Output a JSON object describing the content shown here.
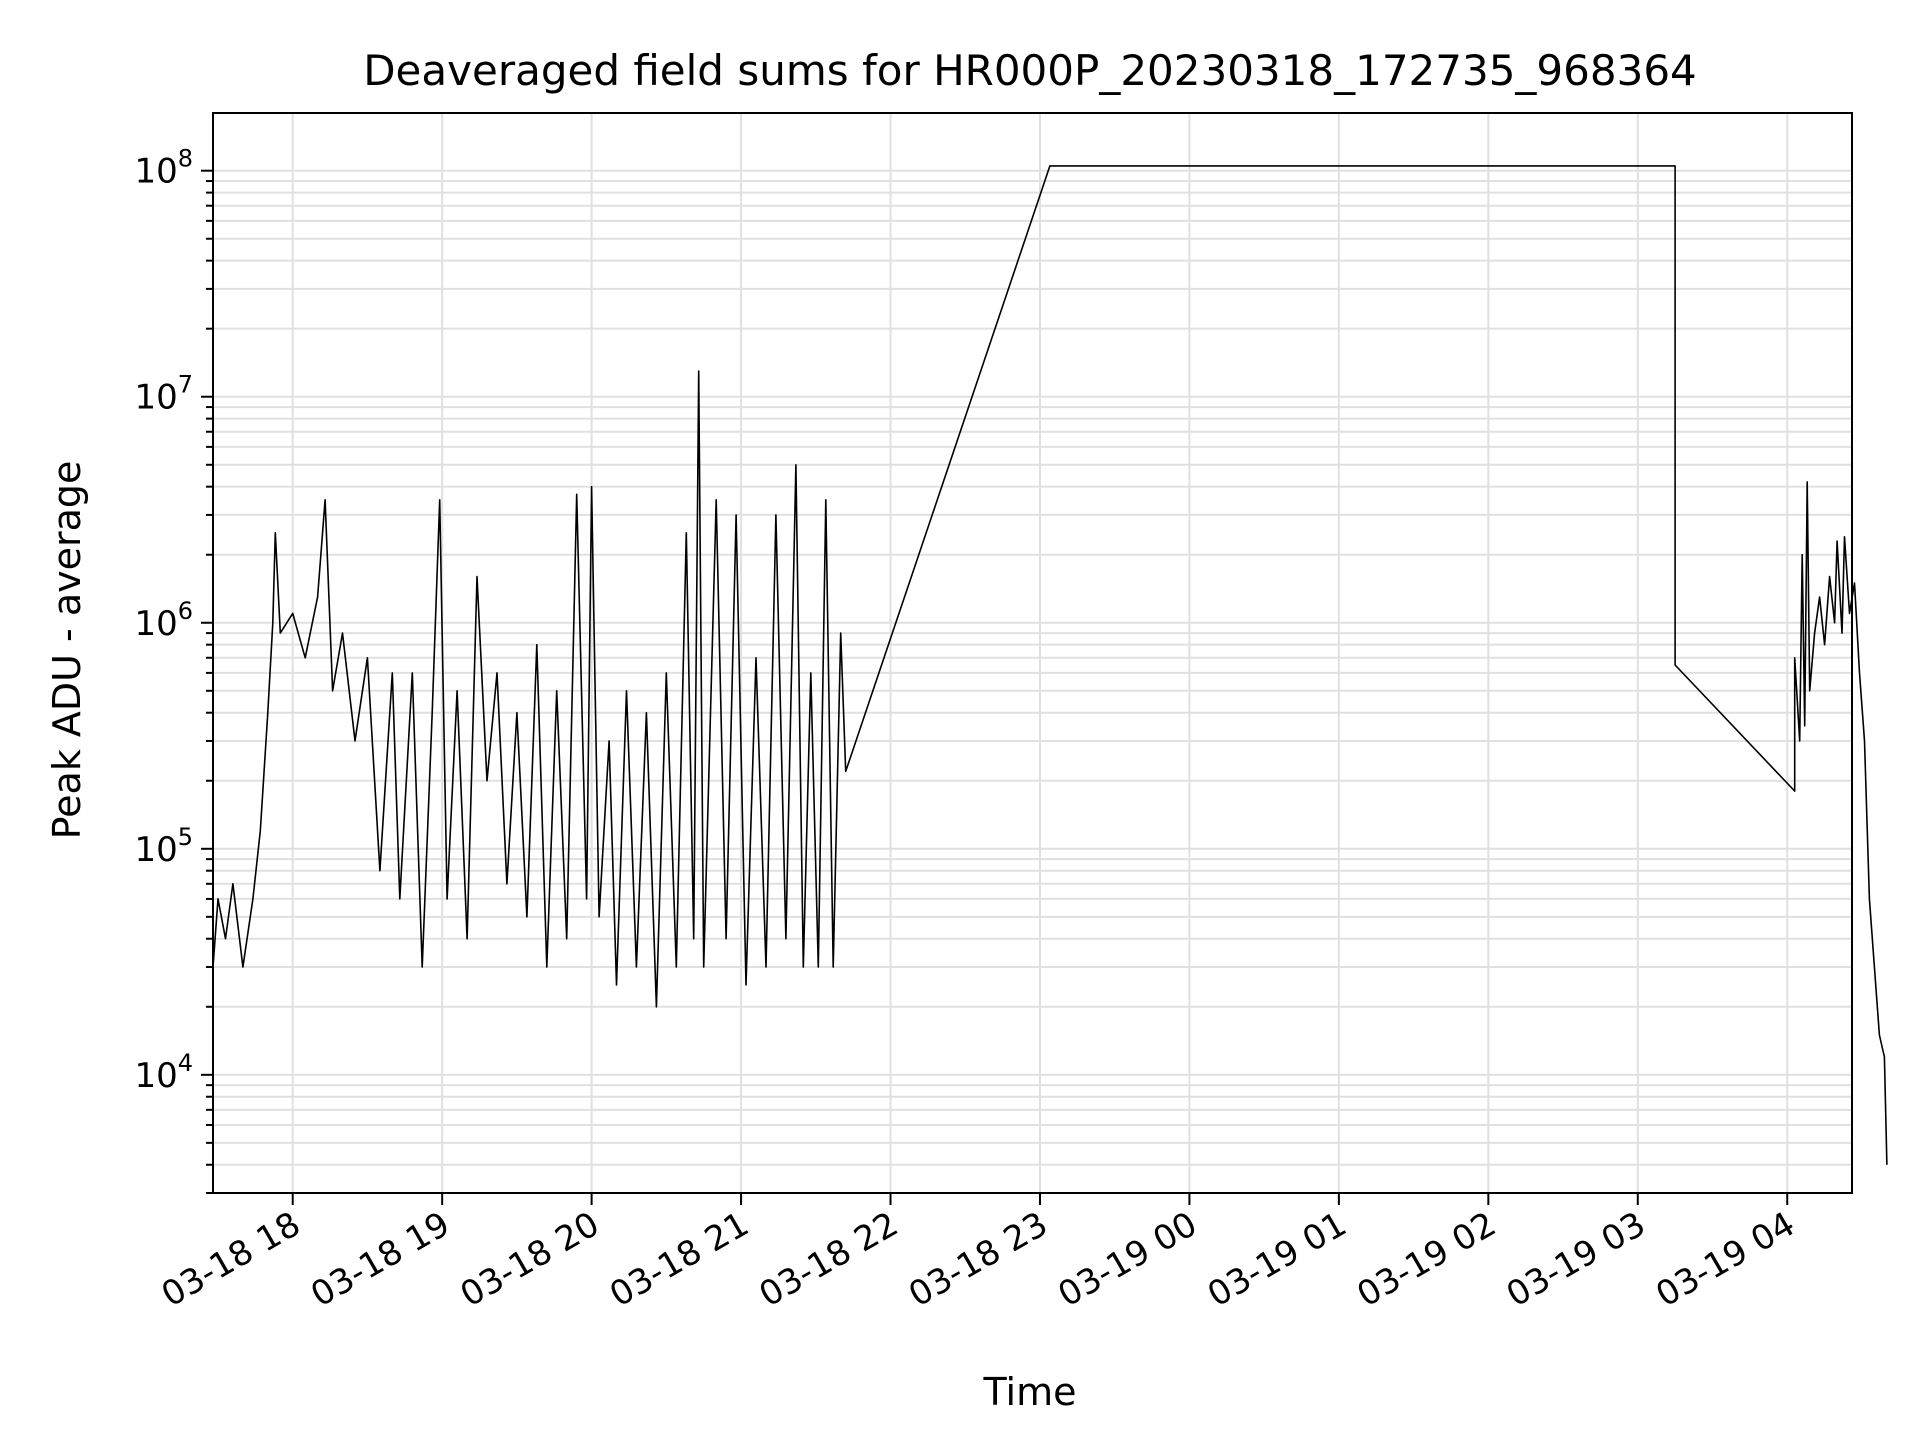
{
  "chart_data": {
    "type": "line",
    "title": "Deaveraged field sums for HR000P_20230318_172735_968364",
    "xlabel": "Time",
    "ylabel": "Peak ADU - average",
    "yscale": "log",
    "ylim": [
      3000,
      180000000
    ],
    "xlim": [
      "2023-03-18 17:28",
      "2023-03-19 04:26"
    ],
    "grid": true,
    "line_color": "#000000",
    "grid_color": "#e0e0e0",
    "x_ticks": [
      "03-18 18",
      "03-18 19",
      "03-18 20",
      "03-18 21",
      "03-18 22",
      "03-18 23",
      "03-19 00",
      "03-19 01",
      "03-19 02",
      "03-19 03",
      "03-19 04"
    ],
    "y_ticks": [
      {
        "value": 10000,
        "base": "10",
        "exponent": "4"
      },
      {
        "value": 100000,
        "base": "10",
        "exponent": "5"
      },
      {
        "value": 1000000,
        "base": "10",
        "exponent": "6"
      },
      {
        "value": 10000000,
        "base": "10",
        "exponent": "7"
      },
      {
        "value": 100000000,
        "base": "10",
        "exponent": "8"
      }
    ],
    "series": [
      {
        "points": [
          [
            "2023-03-18 17:28",
            30000
          ],
          [
            "2023-03-18 17:30",
            60000
          ],
          [
            "2023-03-18 17:33",
            40000
          ],
          [
            "2023-03-18 17:36",
            70000
          ],
          [
            "2023-03-18 17:40",
            30000
          ],
          [
            "2023-03-18 17:44",
            60000
          ],
          [
            "2023-03-18 17:47",
            120000
          ],
          [
            "2023-03-18 17:50",
            400000
          ],
          [
            "2023-03-18 17:52",
            1000000
          ],
          [
            "2023-03-18 17:53",
            2500000
          ],
          [
            "2023-03-18 17:55",
            900000
          ],
          [
            "2023-03-18 18:00",
            1100000
          ],
          [
            "2023-03-18 18:05",
            700000
          ],
          [
            "2023-03-18 18:10",
            1300000
          ],
          [
            "2023-03-18 18:13",
            3500000
          ],
          [
            "2023-03-18 18:16",
            500000
          ],
          [
            "2023-03-18 18:20",
            900000
          ],
          [
            "2023-03-18 18:25",
            300000
          ],
          [
            "2023-03-18 18:30",
            700000
          ],
          [
            "2023-03-18 18:35",
            80000
          ],
          [
            "2023-03-18 18:40",
            600000
          ],
          [
            "2023-03-18 18:43",
            60000
          ],
          [
            "2023-03-18 18:48",
            600000
          ],
          [
            "2023-03-18 18:52",
            30000
          ],
          [
            "2023-03-18 18:56",
            400000
          ],
          [
            "2023-03-18 18:59",
            3500000
          ],
          [
            "2023-03-18 19:02",
            60000
          ],
          [
            "2023-03-18 19:06",
            500000
          ],
          [
            "2023-03-18 19:10",
            40000
          ],
          [
            "2023-03-18 19:14",
            1600000
          ],
          [
            "2023-03-18 19:18",
            200000
          ],
          [
            "2023-03-18 19:22",
            600000
          ],
          [
            "2023-03-18 19:26",
            70000
          ],
          [
            "2023-03-18 19:30",
            400000
          ],
          [
            "2023-03-18 19:34",
            50000
          ],
          [
            "2023-03-18 19:38",
            800000
          ],
          [
            "2023-03-18 19:42",
            30000
          ],
          [
            "2023-03-18 19:46",
            500000
          ],
          [
            "2023-03-18 19:50",
            40000
          ],
          [
            "2023-03-18 19:54",
            3700000
          ],
          [
            "2023-03-18 19:58",
            60000
          ],
          [
            "2023-03-18 20:00",
            4000000
          ],
          [
            "2023-03-18 20:03",
            50000
          ],
          [
            "2023-03-18 20:07",
            300000
          ],
          [
            "2023-03-18 20:10",
            25000
          ],
          [
            "2023-03-18 20:14",
            500000
          ],
          [
            "2023-03-18 20:18",
            30000
          ],
          [
            "2023-03-18 20:22",
            400000
          ],
          [
            "2023-03-18 20:26",
            20000
          ],
          [
            "2023-03-18 20:30",
            600000
          ],
          [
            "2023-03-18 20:34",
            30000
          ],
          [
            "2023-03-18 20:38",
            2500000
          ],
          [
            "2023-03-18 20:41",
            40000
          ],
          [
            "2023-03-18 20:43",
            13000000
          ],
          [
            "2023-03-18 20:45",
            30000
          ],
          [
            "2023-03-18 20:50",
            3500000
          ],
          [
            "2023-03-18 20:54",
            40000
          ],
          [
            "2023-03-18 20:58",
            3000000
          ],
          [
            "2023-03-18 21:02",
            25000
          ],
          [
            "2023-03-18 21:06",
            700000
          ],
          [
            "2023-03-18 21:10",
            30000
          ],
          [
            "2023-03-18 21:14",
            3000000
          ],
          [
            "2023-03-18 21:18",
            40000
          ],
          [
            "2023-03-18 21:22",
            5000000
          ],
          [
            "2023-03-18 21:25",
            30000
          ],
          [
            "2023-03-18 21:28",
            600000
          ],
          [
            "2023-03-18 21:31",
            30000
          ],
          [
            "2023-03-18 21:34",
            3500000
          ],
          [
            "2023-03-18 21:37",
            30000
          ],
          [
            "2023-03-18 21:40",
            900000
          ],
          [
            "2023-03-18 21:42",
            220000
          ],
          [
            "2023-03-18 23:04",
            105000000
          ],
          [
            "2023-03-19 03:15",
            105000000
          ],
          [
            "2023-03-19 03:15",
            650000
          ],
          [
            "2023-03-19 04:03",
            180000
          ],
          [
            "2023-03-19 04:03",
            700000
          ],
          [
            "2023-03-19 04:05",
            300000
          ],
          [
            "2023-03-19 04:06",
            2000000
          ],
          [
            "2023-03-19 04:07",
            350000
          ],
          [
            "2023-03-19 04:08",
            4200000
          ],
          [
            "2023-03-19 04:09",
            500000
          ],
          [
            "2023-03-19 04:11",
            900000
          ],
          [
            "2023-03-19 04:13",
            1300000
          ],
          [
            "2023-03-19 04:15",
            800000
          ],
          [
            "2023-03-19 04:17",
            1600000
          ],
          [
            "2023-03-19 04:19",
            1000000
          ],
          [
            "2023-03-19 04:20",
            2300000
          ],
          [
            "2023-03-19 04:22",
            900000
          ],
          [
            "2023-03-19 04:23",
            2400000
          ],
          [
            "2023-03-19 04:25",
            1100000
          ],
          [
            "2023-03-19 04:27",
            1500000
          ],
          [
            "2023-03-19 04:29",
            600000
          ],
          [
            "2023-03-19 04:31",
            300000
          ],
          [
            "2023-03-19 04:33",
            60000
          ],
          [
            "2023-03-19 04:35",
            30000
          ],
          [
            "2023-03-19 04:37",
            15000
          ],
          [
            "2023-03-19 04:39",
            12000
          ],
          [
            "2023-03-19 04:40",
            4000
          ]
        ]
      }
    ]
  }
}
